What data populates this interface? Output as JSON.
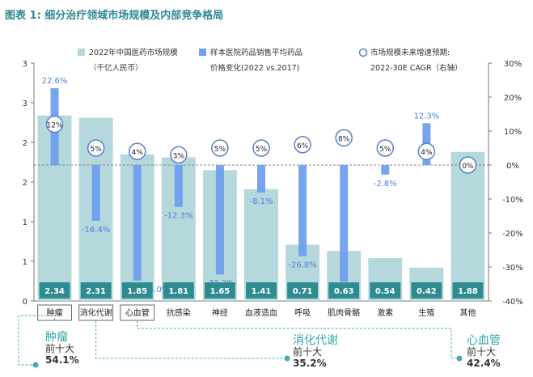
{
  "figure_title": "图表 1: 细分治疗领域市场规模及内部竞争格局",
  "chart_data": {
    "type": "bar",
    "categories": [
      "肿瘤",
      "消化代谢",
      "心血管",
      "抗感染",
      "神经",
      "血液造血",
      "呼吸",
      "肌肉骨骼",
      "激素",
      "生殖",
      "其他"
    ],
    "left_axis": {
      "ylim": [
        0,
        3
      ],
      "ticks": [
        "0",
        "1",
        "1",
        "2",
        "2",
        "3",
        "3"
      ]
    },
    "right_axis": {
      "ylim": [
        -40,
        30
      ],
      "ticks": [
        "-40%",
        "-30%",
        "-20%",
        "-10%",
        "0%",
        "10%",
        "20%",
        "30%"
      ]
    },
    "grid": false,
    "series": [
      {
        "name": "2022年中国医药市场规模（千亿人民币）",
        "axis": "left",
        "values": [
          2.34,
          2.31,
          1.85,
          1.81,
          1.65,
          1.41,
          0.71,
          0.63,
          0.54,
          0.42,
          1.88
        ],
        "value_labels": [
          "2.34",
          "2.31",
          "1.85",
          "1.81",
          "1.65",
          "1.41",
          "0.71",
          "0.63",
          "0.54",
          "0.42",
          "1.88"
        ]
      },
      {
        "name": "样本医院药品销售平均药品价格变化(2022 vs.2017)",
        "axis": "right",
        "values": [
          22.6,
          -16.4,
          -34.0,
          -12.3,
          -32.2,
          -8.1,
          -26.8,
          -34.3,
          -2.8,
          12.3,
          null
        ],
        "value_labels": [
          "22.6%",
          "-16.4%",
          "-34.0%",
          "-12.3%",
          "-32.2%",
          "-8.1%",
          "-26.8%",
          "-34.3%",
          "-2.8%",
          "12.3%",
          ""
        ]
      },
      {
        "name": "市场规模未来增速预期: 2022-30E CAGR（右轴）",
        "axis": "right",
        "type": "marker",
        "values": [
          12,
          5,
          4,
          3,
          5,
          5,
          6,
          8,
          5,
          4,
          0
        ],
        "value_labels": [
          "12%",
          "5%",
          "4%",
          "3%",
          "5%",
          "5%",
          "6%",
          "8%",
          "5%",
          "4%",
          "0%"
        ]
      }
    ],
    "legend": {
      "placement": "top",
      "items": [
        {
          "lines": [
            "2022年中国医药市场规模",
            "（千亿人民币）"
          ],
          "color": "#b5d8dd",
          "shape": "square"
        },
        {
          "lines": [
            "样本医院药品销售平均药品",
            "价格变化(2022 vs.2017)"
          ],
          "color": "#6f9fee",
          "shape": "square"
        },
        {
          "lines": [
            "市场规模未来增速预期:",
            "2022-30E CAGR（右轴）"
          ],
          "color": "#5b7fc7",
          "shape": "circle"
        }
      ]
    }
  },
  "highlighted": [
    "肿瘤",
    "消化代谢",
    "心血管"
  ],
  "callouts": [
    {
      "name": "肿瘤",
      "sub": "前十大",
      "value": "54.1%"
    },
    {
      "name": "消化代谢",
      "sub": "前十大",
      "value": "35.2%"
    },
    {
      "name": "心血管",
      "sub": "前十大",
      "value": "42.4%"
    }
  ],
  "colors": {
    "market_bar": "#b5d8dd",
    "value_box": "#2e8b8f",
    "price_bar": "#6f9fee",
    "price_label": "#4b7fe0",
    "cagr_marker": "#5b7fc7",
    "callout_line": "#4aa8b0",
    "title": "#2d8a92"
  }
}
